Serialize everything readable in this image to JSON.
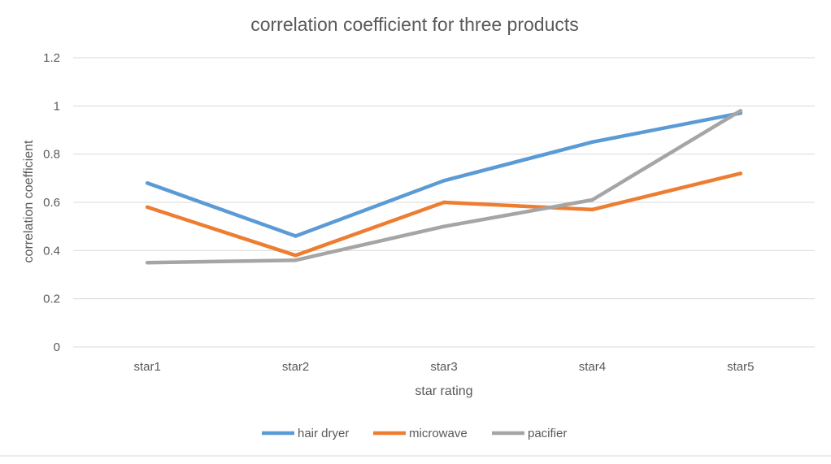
{
  "chart_data": {
    "type": "line",
    "title": "correlation coefficient for three products",
    "xlabel": "star rating",
    "ylabel": "correlation coefficient",
    "categories": [
      "star1",
      "star2",
      "star3",
      "star4",
      "star5"
    ],
    "ylim": [
      0,
      1.2
    ],
    "yticks": [
      "0",
      "0.2",
      "0.4",
      "0.6",
      "0.8",
      "1",
      "1.2"
    ],
    "ytick_values": [
      0,
      0.2,
      0.4,
      0.6,
      0.8,
      1,
      1.2
    ],
    "grid": true,
    "legend_position": "bottom",
    "series": [
      {
        "name": "hair dryer",
        "color": "#5b9bd5",
        "values": [
          0.68,
          0.46,
          0.69,
          0.85,
          0.97
        ]
      },
      {
        "name": "microwave",
        "color": "#ed7d31",
        "values": [
          0.58,
          0.38,
          0.6,
          0.57,
          0.72
        ]
      },
      {
        "name": "pacifier",
        "color": "#a5a5a5",
        "values": [
          0.35,
          0.36,
          0.5,
          0.61,
          0.98
        ]
      }
    ]
  }
}
